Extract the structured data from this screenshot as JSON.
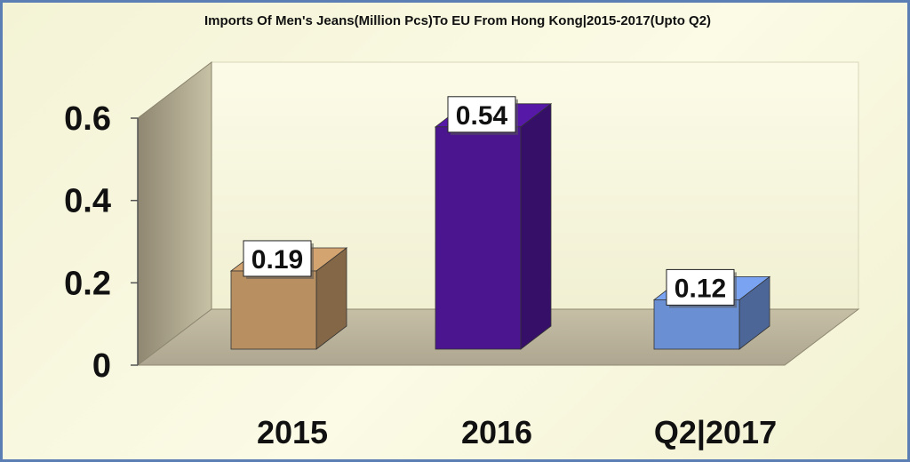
{
  "chart_data": {
    "type": "bar",
    "title": "Imports Of Men's Jeans(Million Pcs)To EU From Hong Kong|2015-2017(Upto Q2)",
    "categories": [
      "2015",
      "2016",
      "Q2|2017"
    ],
    "values": [
      0.19,
      0.54,
      0.12
    ],
    "data_labels": [
      "0.19",
      "0.54",
      "0.12"
    ],
    "ylim": [
      0,
      0.6
    ],
    "yticks": [
      "0",
      "0.2",
      "0.4",
      "0.6"
    ],
    "xlabel": "",
    "ylabel": "",
    "grid": false,
    "legend": "none",
    "style": "3d-column",
    "bar_colors": [
      "#b88f61",
      "#4b1590",
      "#6a8fd2"
    ],
    "background_color": "#f7f6dc",
    "border_color": "#5b7fb4"
  }
}
